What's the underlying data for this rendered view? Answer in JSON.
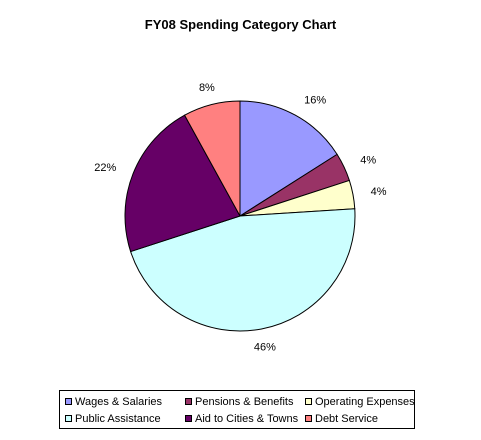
{
  "chart_data": {
    "type": "pie",
    "title": "FY08 Spending Category Chart",
    "categories": [
      "Wages & Salaries",
      "Pensions & Benefits",
      "Operating Expenses",
      "Public Assistance",
      "Aid to Cities & Towns",
      "Debt Service"
    ],
    "values": [
      16,
      4,
      4,
      46,
      22,
      8
    ],
    "labels": [
      "16%",
      "4%",
      "4%",
      "46%",
      "22%",
      "8%"
    ],
    "colors": [
      "#9999FF",
      "#993366",
      "#FFFFCC",
      "#CCFFFF",
      "#660066",
      "#FF8080"
    ],
    "legend": "bottom"
  }
}
